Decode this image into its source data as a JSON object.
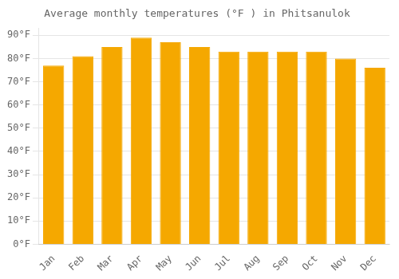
{
  "chart_data": {
    "type": "bar",
    "title": "Average monthly temperatures (°F ) in Phitsanulok",
    "categories": [
      "Jan",
      "Feb",
      "Mar",
      "Apr",
      "May",
      "Jun",
      "Jul",
      "Aug",
      "Sep",
      "Oct",
      "Nov",
      "Dec"
    ],
    "values": [
      77,
      81,
      85,
      89,
      87,
      85,
      83,
      83,
      83,
      83,
      80,
      76
    ],
    "color": "#F5A800",
    "ylim": [
      0,
      93
    ],
    "yticks": [
      {
        "value": 0,
        "label": "0°F"
      },
      {
        "value": 10,
        "label": "10°F"
      },
      {
        "value": 20,
        "label": "20°F"
      },
      {
        "value": 30,
        "label": "30°F"
      },
      {
        "value": 40,
        "label": "40°F"
      },
      {
        "value": 50,
        "label": "50°F"
      },
      {
        "value": 60,
        "label": "60°F"
      },
      {
        "value": 70,
        "label": "70°F"
      },
      {
        "value": 80,
        "label": "80°F"
      },
      {
        "value": 90,
        "label": "90°F"
      }
    ],
    "grid": true
  }
}
